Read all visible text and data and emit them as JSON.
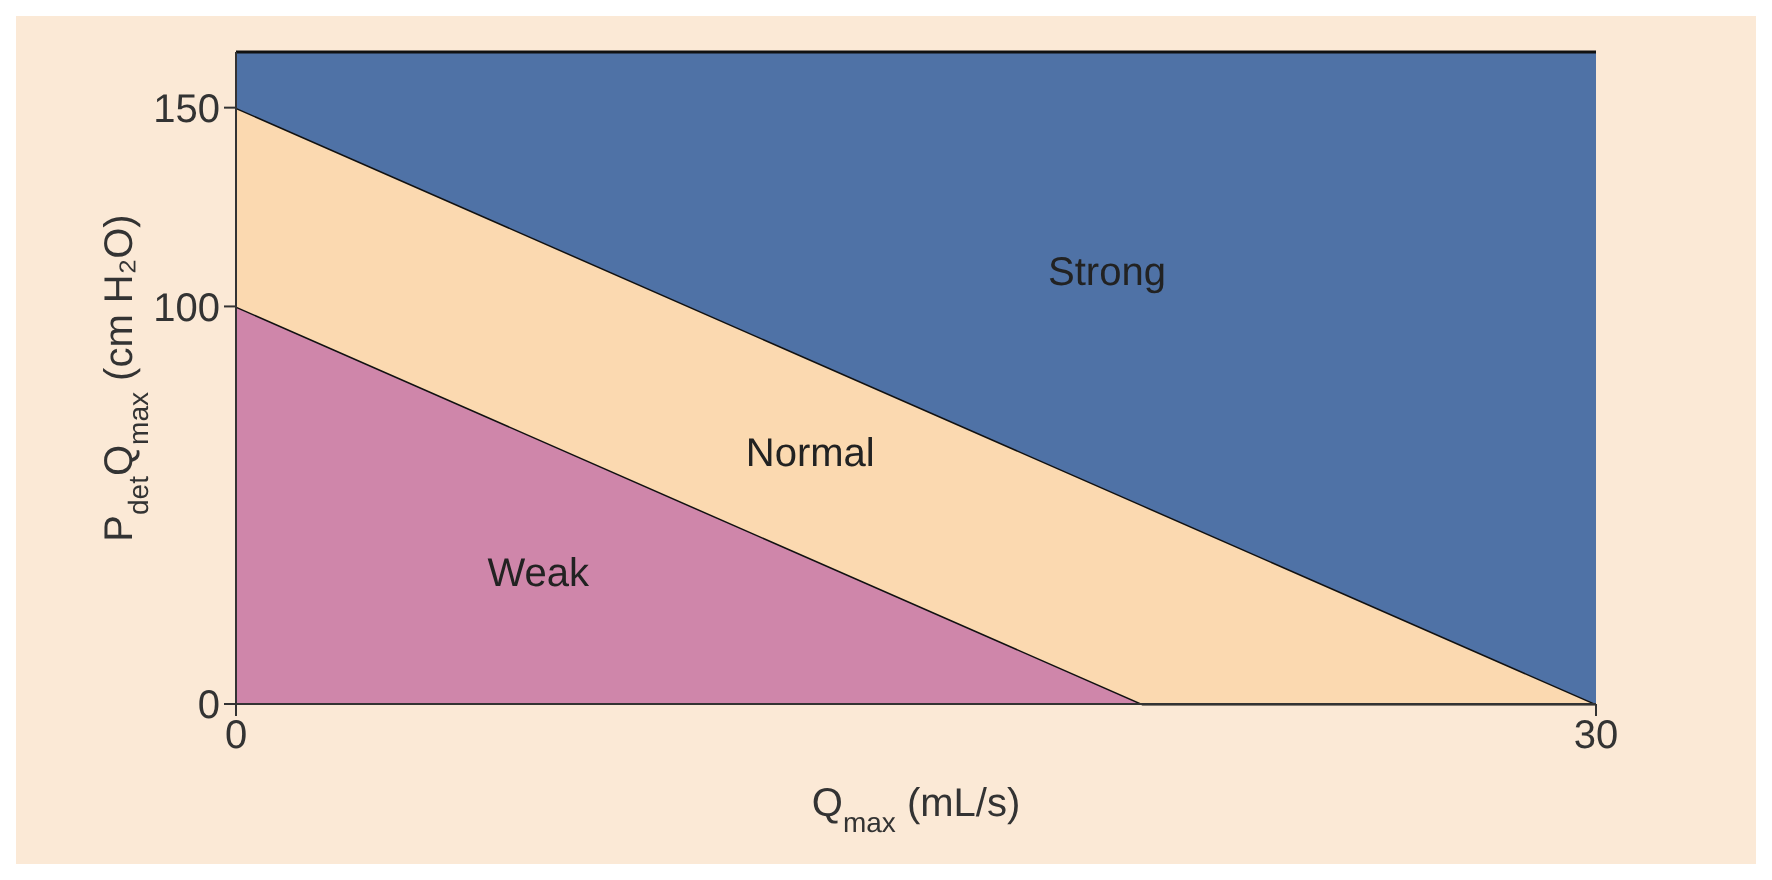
{
  "chart_data": {
    "type": "area",
    "stacked": true,
    "xlabel": "Q$_{max}$ (mL/s)",
    "ylabel": "P$_{det}$Q$_{max}$ (cm H₂O)",
    "x": [
      0,
      20,
      30
    ],
    "series": [
      {
        "name": "Weak",
        "color": "#cf86aa",
        "values": [
          100,
          0,
          0
        ]
      },
      {
        "name": "Normal",
        "color": "#fbd9b0",
        "values": [
          50,
          50,
          0
        ]
      },
      {
        "name": "Strong",
        "color": "#4f72a6",
        "values": [
          14,
          114,
          164
        ]
      }
    ],
    "xlim": [
      0,
      30
    ],
    "xticks": [
      0,
      30
    ],
    "ylim": [
      0,
      164
    ],
    "yticks": [
      0,
      100,
      150
    ],
    "grid": false,
    "legend": false
  }
}
